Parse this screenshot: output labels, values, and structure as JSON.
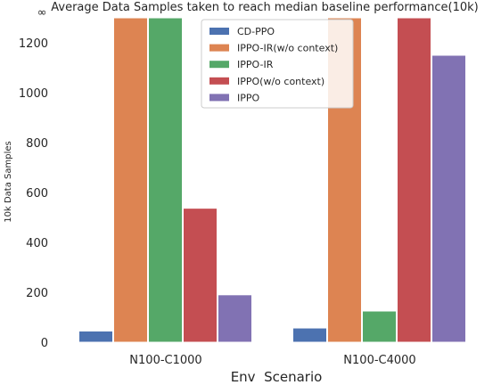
{
  "chart_data": {
    "type": "bar",
    "title": "Average Data Samples taken to reach median baseline performance(10k)",
    "top_marker": "∞",
    "xlabel": "Env  Scenario",
    "ylabel": "10k Data Samples",
    "ylim": [
      0,
      1300
    ],
    "yticks": [
      0,
      200,
      400,
      600,
      800,
      1000,
      1200
    ],
    "categories": [
      "N100-C1000",
      "N100-C4000"
    ],
    "grid": false,
    "legend_position": "top-center",
    "series": [
      {
        "name": "CD-PPO",
        "color": "#4c72b0",
        "values": [
          45,
          57
        ]
      },
      {
        "name": "IPPO-IR(w/o context)",
        "color": "#dd8452",
        "values": [
          1300,
          1300
        ]
      },
      {
        "name": "IPPO-IR",
        "color": "#55a868",
        "values": [
          1300,
          125
        ]
      },
      {
        "name": "IPPO(w/o context)",
        "color": "#c44e52",
        "values": [
          537,
          1300
        ]
      },
      {
        "name": "IPPO",
        "color": "#8172b3",
        "values": [
          190,
          1150
        ]
      }
    ]
  }
}
